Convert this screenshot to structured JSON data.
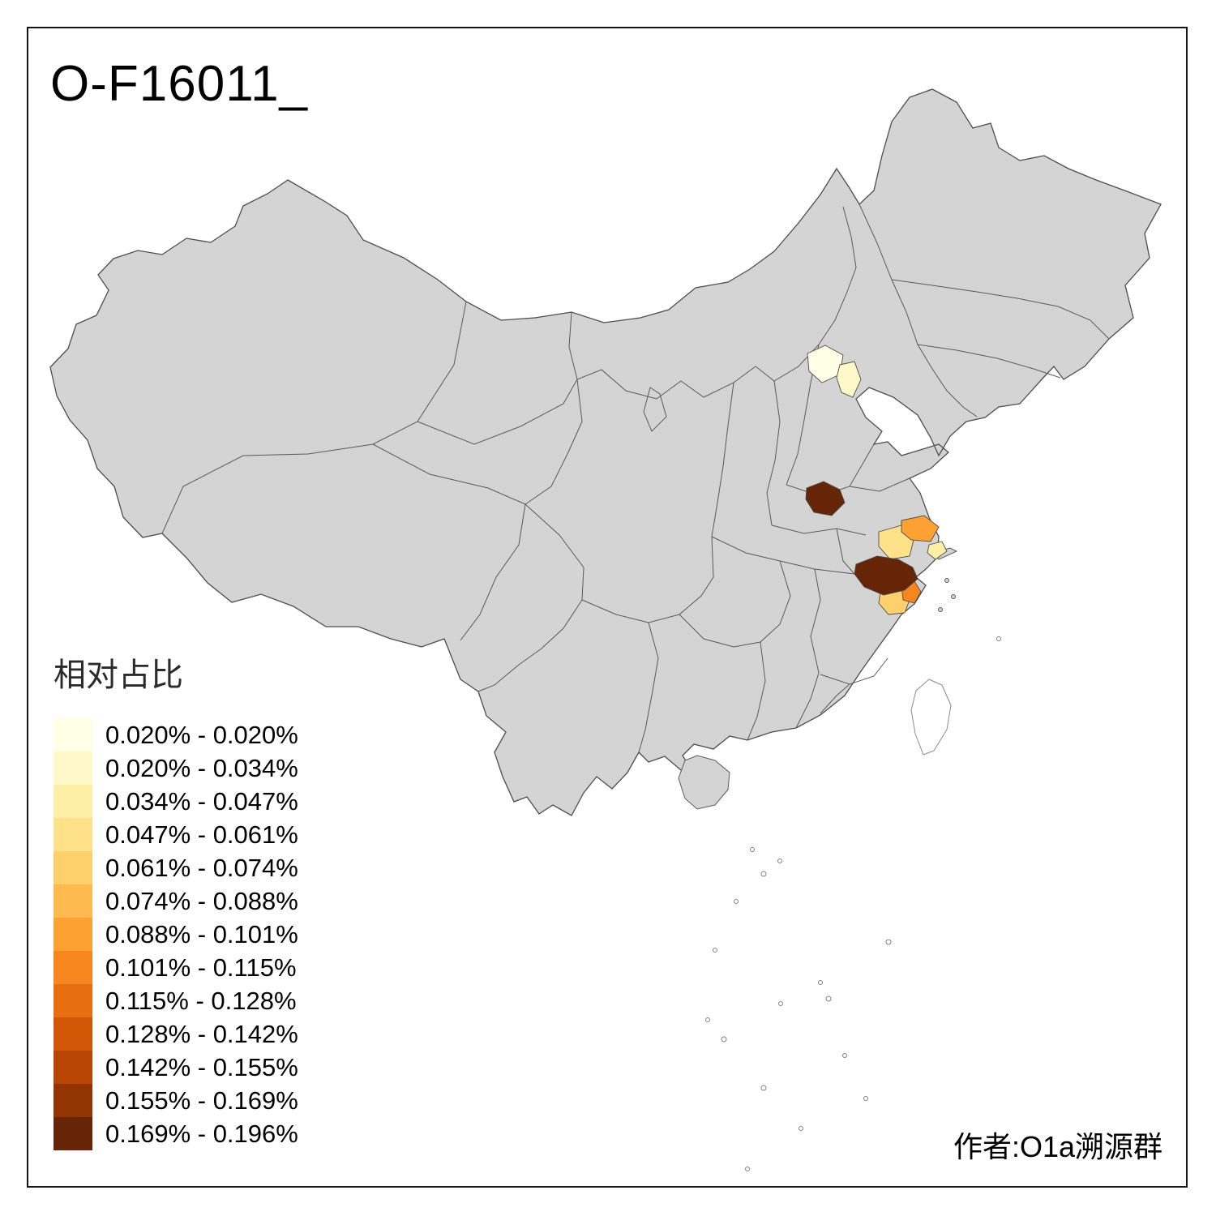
{
  "title": "O-F16011_",
  "attribution": "作者:O1a溯源群",
  "legend": {
    "title": "相对占比",
    "items": [
      {
        "label": "0.020% - 0.020%",
        "color": "#FFFFE5"
      },
      {
        "label": "0.020% - 0.034%",
        "color": "#FFF8C8"
      },
      {
        "label": "0.034% - 0.047%",
        "color": "#FEEFA7"
      },
      {
        "label": "0.047% - 0.061%",
        "color": "#FEE189"
      },
      {
        "label": "0.061% - 0.074%",
        "color": "#FED06C"
      },
      {
        "label": "0.074% - 0.088%",
        "color": "#FEBA4E"
      },
      {
        "label": "0.088% - 0.101%",
        "color": "#FEA133"
      },
      {
        "label": "0.101% - 0.115%",
        "color": "#F7861E"
      },
      {
        "label": "0.115% - 0.128%",
        "color": "#E86F11"
      },
      {
        "label": "0.128% - 0.142%",
        "color": "#D45708"
      },
      {
        "label": "0.142% - 0.155%",
        "color": "#B94504"
      },
      {
        "label": "0.155% - 0.169%",
        "color": "#933404"
      },
      {
        "label": "0.169% - 0.196%",
        "color": "#662506"
      }
    ]
  },
  "map": {
    "base_fill": "#D4D4D4",
    "border_color": "#4D4D4D",
    "water_fill": "#FFFFFF",
    "taiwan_fill": "#FFFFFF",
    "highlight_regions": [
      {
        "name": "beijing",
        "color": "#FFFFE5"
      },
      {
        "name": "tianjin",
        "color": "#FFF8C8"
      },
      {
        "name": "north-anhui",
        "color": "#662506"
      },
      {
        "name": "nantong-area",
        "color": "#FEA133"
      },
      {
        "name": "yangzhou-area",
        "color": "#FEE189"
      },
      {
        "name": "shanghai-area",
        "color": "#FEEFA7"
      },
      {
        "name": "south-anhui",
        "color": "#662506"
      },
      {
        "name": "west-hangzhou-area",
        "color": "#FED06C"
      },
      {
        "name": "quzhou-area",
        "color": "#F7861E"
      }
    ]
  }
}
